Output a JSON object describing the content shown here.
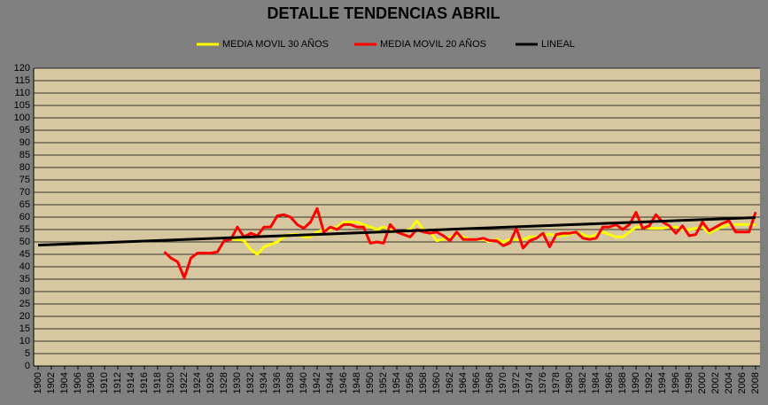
{
  "chart_data": {
    "type": "line",
    "title": "DETALLE TENDENCIAS ABRIL",
    "xlim": [
      1900,
      2008
    ],
    "xticks": [
      1900,
      1902,
      1904,
      1906,
      1908,
      1910,
      1912,
      1914,
      1916,
      1918,
      1920,
      1922,
      1924,
      1926,
      1928,
      1930,
      1932,
      1934,
      1936,
      1938,
      1940,
      1942,
      1944,
      1946,
      1948,
      1950,
      1952,
      1954,
      1956,
      1958,
      1960,
      1962,
      1964,
      1966,
      1968,
      1970,
      1972,
      1974,
      1976,
      1978,
      1980,
      1982,
      1984,
      1986,
      1988,
      1990,
      1992,
      1994,
      1996,
      1998,
      2000,
      2002,
      2004,
      2006,
      2008
    ],
    "ylim": [
      0,
      120
    ],
    "yticks": [
      0,
      5,
      10,
      15,
      20,
      25,
      30,
      35,
      40,
      45,
      50,
      55,
      60,
      65,
      70,
      75,
      80,
      85,
      90,
      95,
      100,
      105,
      110,
      115,
      120
    ],
    "grid": true,
    "series": [
      {
        "name": "MEDIA MOVIL 30 AÑOS",
        "color": "#ffff00",
        "x": [
          1929,
          1930,
          1931,
          1932,
          1933,
          1934,
          1935,
          1936,
          1937,
          1938,
          1939,
          1940,
          1941,
          1942,
          1943,
          1944,
          1945,
          1946,
          1947,
          1948,
          1949,
          1950,
          1951,
          1952,
          1953,
          1954,
          1955,
          1956,
          1957,
          1958,
          1959,
          1960,
          1961,
          1962,
          1963,
          1964,
          1965,
          1966,
          1967,
          1968,
          1969,
          1970,
          1971,
          1972,
          1973,
          1974,
          1975,
          1976,
          1977,
          1978,
          1979,
          1980,
          1981,
          1982,
          1983,
          1984,
          1985,
          1986,
          1987,
          1988,
          1989,
          1990,
          1991,
          1992,
          1993,
          1994,
          1995,
          1996,
          1997,
          1998,
          1999,
          2000,
          2001,
          2002,
          2003,
          2004,
          2005,
          2006,
          2007,
          2008
        ],
        "values": [
          51,
          51,
          50.5,
          47,
          45,
          48,
          49,
          50,
          52,
          53,
          53,
          52,
          52,
          54,
          55,
          55,
          56,
          58,
          58,
          58,
          57,
          56,
          55,
          56,
          55,
          54,
          54,
          55,
          58.5,
          55,
          54,
          50.5,
          51,
          52,
          53,
          52,
          51,
          51,
          51,
          50,
          51,
          50,
          51,
          51,
          51,
          52,
          52,
          53,
          53,
          52.5,
          52.5,
          53,
          54,
          53,
          52,
          53,
          54,
          53,
          52,
          52,
          54,
          56,
          56,
          55.5,
          55.5,
          55.5,
          56,
          56,
          55,
          55,
          55.5,
          56,
          53.5,
          55,
          56,
          57,
          57,
          57,
          57,
          57
        ]
      },
      {
        "name": "MEDIA MOVIL 20 AÑOS",
        "color": "#ff0000",
        "x": [
          1919,
          1920,
          1921,
          1922,
          1923,
          1924,
          1925,
          1926,
          1927,
          1928,
          1929,
          1930,
          1931,
          1932,
          1933,
          1934,
          1935,
          1936,
          1937,
          1938,
          1939,
          1940,
          1941,
          1942,
          1943,
          1944,
          1945,
          1946,
          1947,
          1948,
          1949,
          1950,
          1951,
          1952,
          1953,
          1954,
          1955,
          1956,
          1957,
          1958,
          1959,
          1960,
          1961,
          1962,
          1963,
          1964,
          1965,
          1966,
          1967,
          1968,
          1969,
          1970,
          1971,
          1972,
          1973,
          1974,
          1975,
          1976,
          1977,
          1978,
          1979,
          1980,
          1981,
          1982,
          1983,
          1984,
          1985,
          1986,
          1987,
          1988,
          1989,
          1990,
          1991,
          1992,
          1993,
          1994,
          1995,
          1996,
          1997,
          1998,
          1999,
          2000,
          2001,
          2002,
          2003,
          2004,
          2005,
          2006,
          2007,
          2008
        ],
        "values": [
          46,
          43.5,
          42,
          35.5,
          43.5,
          45.5,
          45.5,
          45.5,
          46,
          50.5,
          51,
          56,
          52,
          53.5,
          52.5,
          56,
          56,
          60.5,
          61,
          60,
          57,
          55.5,
          58,
          63.5,
          54,
          56,
          55,
          57,
          57,
          56,
          56,
          49.5,
          50,
          49.5,
          57,
          54,
          53,
          52,
          55,
          54,
          53.5,
          54,
          52.5,
          50.5,
          54,
          51,
          51,
          51,
          51.5,
          50.5,
          50.5,
          48.5,
          49.5,
          55.5,
          47.5,
          50.5,
          51.5,
          53.5,
          48,
          53,
          53.5,
          53.5,
          54,
          51.5,
          51,
          51.5,
          56,
          56,
          57,
          55,
          57,
          62,
          55.5,
          56.5,
          61,
          58,
          56.5,
          53.5,
          56.5,
          52.5,
          53,
          58,
          54.5,
          56,
          57.5,
          58.5,
          54,
          54,
          54,
          62
        ]
      },
      {
        "name": "LINEAL",
        "color": "#000000",
        "x": [
          1900,
          2008
        ],
        "values": [
          48.7,
          59.8
        ]
      }
    ]
  }
}
